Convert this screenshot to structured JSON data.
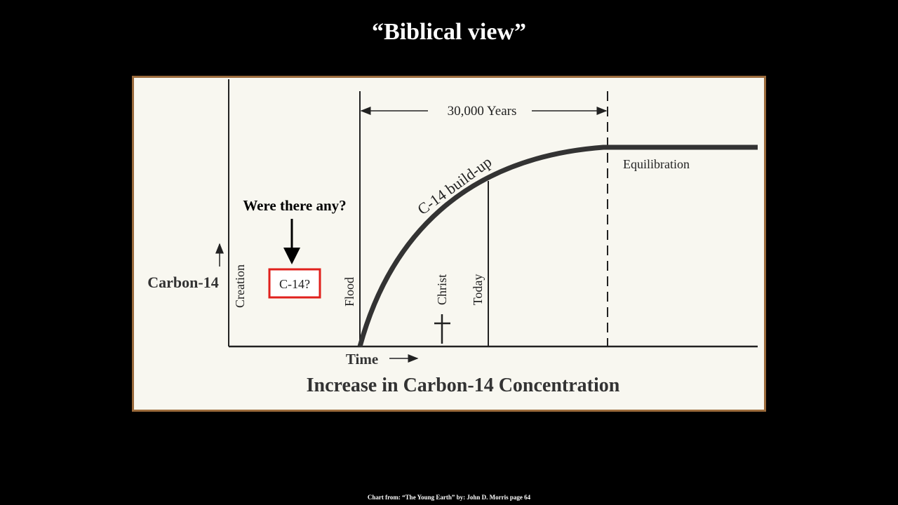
{
  "header": {
    "title": "“Biblical view”"
  },
  "diagram": {
    "span_label": "30,000 Years",
    "curve_label": "C-14 build-up",
    "plateau_label": "Equilibration",
    "question": "Were there any?",
    "box_label": "C-14?",
    "y_axis_label": "Carbon-14",
    "x_axis_label": "Time",
    "events": [
      "Creation",
      "Flood",
      "Christ",
      "Today"
    ],
    "caption": "Increase in Carbon-14 Concentration"
  },
  "footer": {
    "credit": "Chart from: “The Young Earth” by: John D. Morris page 64"
  }
}
